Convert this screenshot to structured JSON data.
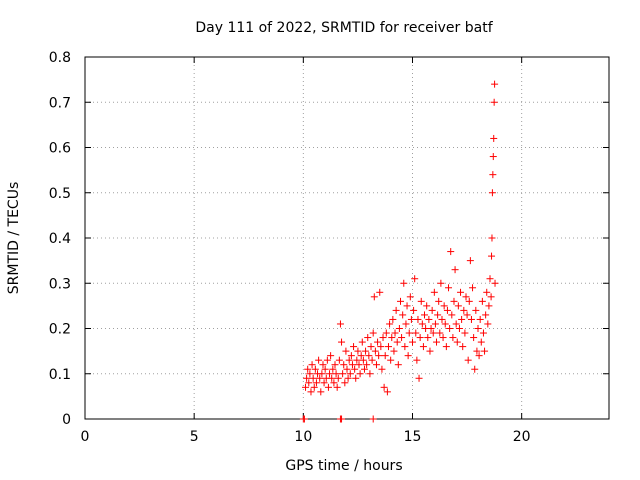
{
  "chart_data": {
    "type": "scatter",
    "title": "Day 111 of 2022, SRMTID for receiver batf",
    "xlabel": "GPS time / hours",
    "ylabel": "SRMTID / TECUs",
    "xlim": [
      0,
      24
    ],
    "ylim": [
      0,
      0.8
    ],
    "xticks": [
      0,
      5,
      10,
      15,
      20
    ],
    "yticks": [
      0,
      0.1,
      0.2,
      0.3,
      0.4,
      0.5,
      0.6,
      0.7,
      0.8
    ],
    "grid": true,
    "marker": "plus",
    "color": "#ff0000",
    "series": [
      {
        "name": "SRMTID",
        "points": [
          [
            10.0,
            0.0
          ],
          [
            10.05,
            0.0
          ],
          [
            11.7,
            0.0
          ],
          [
            11.75,
            0.0
          ],
          [
            13.2,
            0.0
          ],
          [
            10.1,
            0.07
          ],
          [
            10.15,
            0.09
          ],
          [
            10.2,
            0.11
          ],
          [
            10.25,
            0.08
          ],
          [
            10.3,
            0.1
          ],
          [
            10.35,
            0.06
          ],
          [
            10.4,
            0.12
          ],
          [
            10.45,
            0.09
          ],
          [
            10.5,
            0.07
          ],
          [
            10.55,
            0.11
          ],
          [
            10.6,
            0.08
          ],
          [
            10.65,
            0.1
          ],
          [
            10.7,
            0.13
          ],
          [
            10.75,
            0.09
          ],
          [
            10.8,
            0.06
          ],
          [
            10.85,
            0.1
          ],
          [
            10.9,
            0.12
          ],
          [
            10.95,
            0.08
          ],
          [
            11.0,
            0.11
          ],
          [
            11.05,
            0.09
          ],
          [
            11.1,
            0.13
          ],
          [
            11.15,
            0.07
          ],
          [
            11.2,
            0.1
          ],
          [
            11.25,
            0.14
          ],
          [
            11.3,
            0.09
          ],
          [
            11.35,
            0.11
          ],
          [
            11.4,
            0.08
          ],
          [
            11.45,
            0.12
          ],
          [
            11.5,
            0.1
          ],
          [
            11.55,
            0.07
          ],
          [
            11.6,
            0.09
          ],
          [
            11.65,
            0.13
          ],
          [
            11.7,
            0.21
          ],
          [
            11.75,
            0.17
          ],
          [
            11.8,
            0.1
          ],
          [
            11.85,
            0.12
          ],
          [
            11.9,
            0.08
          ],
          [
            11.95,
            0.15
          ],
          [
            12.0,
            0.11
          ],
          [
            12.05,
            0.09
          ],
          [
            12.1,
            0.13
          ],
          [
            12.15,
            0.1
          ],
          [
            12.2,
            0.14
          ],
          [
            12.25,
            0.12
          ],
          [
            12.3,
            0.16
          ],
          [
            12.35,
            0.11
          ],
          [
            12.4,
            0.09
          ],
          [
            12.45,
            0.13
          ],
          [
            12.5,
            0.15
          ],
          [
            12.55,
            0.12
          ],
          [
            12.6,
            0.1
          ],
          [
            12.65,
            0.14
          ],
          [
            12.7,
            0.17
          ],
          [
            12.75,
            0.13
          ],
          [
            12.8,
            0.11
          ],
          [
            12.85,
            0.15
          ],
          [
            12.9,
            0.12
          ],
          [
            12.95,
            0.18
          ],
          [
            13.0,
            0.14
          ],
          [
            13.05,
            0.1
          ],
          [
            13.1,
            0.16
          ],
          [
            13.15,
            0.13
          ],
          [
            13.2,
            0.19
          ],
          [
            13.25,
            0.27
          ],
          [
            13.3,
            0.15
          ],
          [
            13.35,
            0.12
          ],
          [
            13.4,
            0.17
          ],
          [
            13.45,
            0.14
          ],
          [
            13.5,
            0.28
          ],
          [
            13.55,
            0.16
          ],
          [
            13.6,
            0.11
          ],
          [
            13.65,
            0.18
          ],
          [
            13.7,
            0.07
          ],
          [
            13.75,
            0.14
          ],
          [
            13.8,
            0.19
          ],
          [
            13.85,
            0.06
          ],
          [
            13.9,
            0.16
          ],
          [
            13.95,
            0.21
          ],
          [
            14.0,
            0.13
          ],
          [
            14.05,
            0.18
          ],
          [
            14.1,
            0.22
          ],
          [
            14.15,
            0.15
          ],
          [
            14.2,
            0.19
          ],
          [
            14.25,
            0.24
          ],
          [
            14.3,
            0.17
          ],
          [
            14.35,
            0.12
          ],
          [
            14.4,
            0.2
          ],
          [
            14.45,
            0.26
          ],
          [
            14.5,
            0.18
          ],
          [
            14.55,
            0.23
          ],
          [
            14.6,
            0.3
          ],
          [
            14.65,
            0.16
          ],
          [
            14.7,
            0.21
          ],
          [
            14.75,
            0.25
          ],
          [
            14.8,
            0.14
          ],
          [
            14.85,
            0.19
          ],
          [
            14.9,
            0.27
          ],
          [
            14.95,
            0.22
          ],
          [
            15.0,
            0.17
          ],
          [
            15.05,
            0.24
          ],
          [
            15.1,
            0.31
          ],
          [
            15.15,
            0.19
          ],
          [
            15.2,
            0.13
          ],
          [
            15.25,
            0.22
          ],
          [
            15.3,
            0.09
          ],
          [
            15.35,
            0.18
          ],
          [
            15.4,
            0.26
          ],
          [
            15.45,
            0.21
          ],
          [
            15.5,
            0.16
          ],
          [
            15.55,
            0.23
          ],
          [
            15.6,
            0.2
          ],
          [
            15.65,
            0.25
          ],
          [
            15.7,
            0.18
          ],
          [
            15.75,
            0.22
          ],
          [
            15.8,
            0.15
          ],
          [
            15.85,
            0.2
          ],
          [
            15.9,
            0.24
          ],
          [
            15.95,
            0.19
          ],
          [
            16.0,
            0.28
          ],
          [
            16.05,
            0.21
          ],
          [
            16.1,
            0.17
          ],
          [
            16.15,
            0.23
          ],
          [
            16.2,
            0.26
          ],
          [
            16.25,
            0.19
          ],
          [
            16.3,
            0.3
          ],
          [
            16.35,
            0.22
          ],
          [
            16.4,
            0.18
          ],
          [
            16.45,
            0.25
          ],
          [
            16.5,
            0.21
          ],
          [
            16.55,
            0.16
          ],
          [
            16.6,
            0.24
          ],
          [
            16.65,
            0.29
          ],
          [
            16.7,
            0.2
          ],
          [
            16.75,
            0.37
          ],
          [
            16.8,
            0.23
          ],
          [
            16.85,
            0.18
          ],
          [
            16.9,
            0.26
          ],
          [
            16.95,
            0.33
          ],
          [
            17.0,
            0.21
          ],
          [
            17.05,
            0.17
          ],
          [
            17.1,
            0.25
          ],
          [
            17.15,
            0.2
          ],
          [
            17.2,
            0.28
          ],
          [
            17.25,
            0.22
          ],
          [
            17.3,
            0.16
          ],
          [
            17.35,
            0.24
          ],
          [
            17.4,
            0.19
          ],
          [
            17.45,
            0.27
          ],
          [
            17.5,
            0.23
          ],
          [
            17.55,
            0.13
          ],
          [
            17.6,
            0.26
          ],
          [
            17.65,
            0.35
          ],
          [
            17.7,
            0.22
          ],
          [
            17.75,
            0.29
          ],
          [
            17.8,
            0.18
          ],
          [
            17.85,
            0.11
          ],
          [
            17.9,
            0.24
          ],
          [
            17.95,
            0.15
          ],
          [
            18.0,
            0.2
          ],
          [
            18.05,
            0.14
          ],
          [
            18.1,
            0.22
          ],
          [
            18.15,
            0.17
          ],
          [
            18.2,
            0.26
          ],
          [
            18.25,
            0.19
          ],
          [
            18.3,
            0.15
          ],
          [
            18.35,
            0.23
          ],
          [
            18.4,
            0.28
          ],
          [
            18.45,
            0.21
          ],
          [
            18.5,
            0.25
          ],
          [
            18.55,
            0.31
          ],
          [
            18.6,
            0.27
          ],
          [
            18.62,
            0.36
          ],
          [
            18.64,
            0.4
          ],
          [
            18.66,
            0.5
          ],
          [
            18.68,
            0.54
          ],
          [
            18.7,
            0.58
          ],
          [
            18.72,
            0.62
          ],
          [
            18.74,
            0.7
          ],
          [
            18.76,
            0.74
          ],
          [
            18.78,
            0.3
          ]
        ]
      }
    ]
  }
}
